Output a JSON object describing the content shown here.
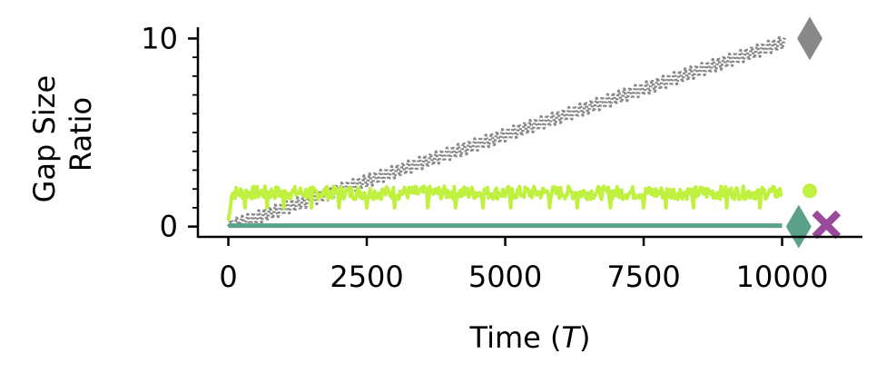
{
  "chart_data": {
    "type": "line",
    "xlabel_main": "Time (",
    "xlabel_italic": "T",
    "xlabel_end": ")",
    "ylabel_lines": [
      "Gap Size",
      "Ratio"
    ],
    "xlim": [
      -550,
      11450
    ],
    "ylim": [
      -0.5,
      10.6
    ],
    "xticks": [
      0,
      2500,
      5000,
      7500,
      10000
    ],
    "xtick_labels": [
      "0",
      "2500",
      "5000",
      "7500",
      "10000"
    ],
    "yticks": [
      0,
      10
    ],
    "ytick_labels": [
      "0",
      "10"
    ],
    "y_minor_ticks": [
      1,
      2,
      3,
      4,
      5,
      6,
      7,
      8,
      9
    ],
    "series": [
      {
        "color": "#888888",
        "style": "dotted-sawtooth",
        "x_start": 0,
        "x_end": 10000,
        "y_start": 0,
        "y_end": 9.8,
        "amplitude": 0.35,
        "period": 100
      },
      {
        "color": "#c0f040",
        "style": "noisy-band",
        "x_start": 0,
        "x_end": 10000,
        "y_level": 1.8,
        "y_band": 0.35,
        "dips": [
          0,
          300,
          700,
          1000,
          1500,
          2000,
          2500,
          3000,
          3600,
          4100,
          4600,
          5100,
          5800,
          6300,
          6900,
          7500,
          7900,
          8400,
          9000,
          9600
        ]
      },
      {
        "color": "#5aa08a",
        "style": "flat",
        "x_start": 0,
        "x_end": 10000,
        "y_level": 0.05
      }
    ],
    "end_markers": [
      {
        "shape": "diamond",
        "color": "#888888",
        "x": 10500,
        "y": 10.0
      },
      {
        "shape": "circle",
        "color": "#c0f040",
        "x": 10500,
        "y": 1.9
      },
      {
        "shape": "diamond",
        "color": "#5aa08a",
        "x": 10300,
        "y": 0.0
      },
      {
        "shape": "cross",
        "color": "#9a4a9a",
        "x": 10800,
        "y": 0.1
      }
    ]
  }
}
